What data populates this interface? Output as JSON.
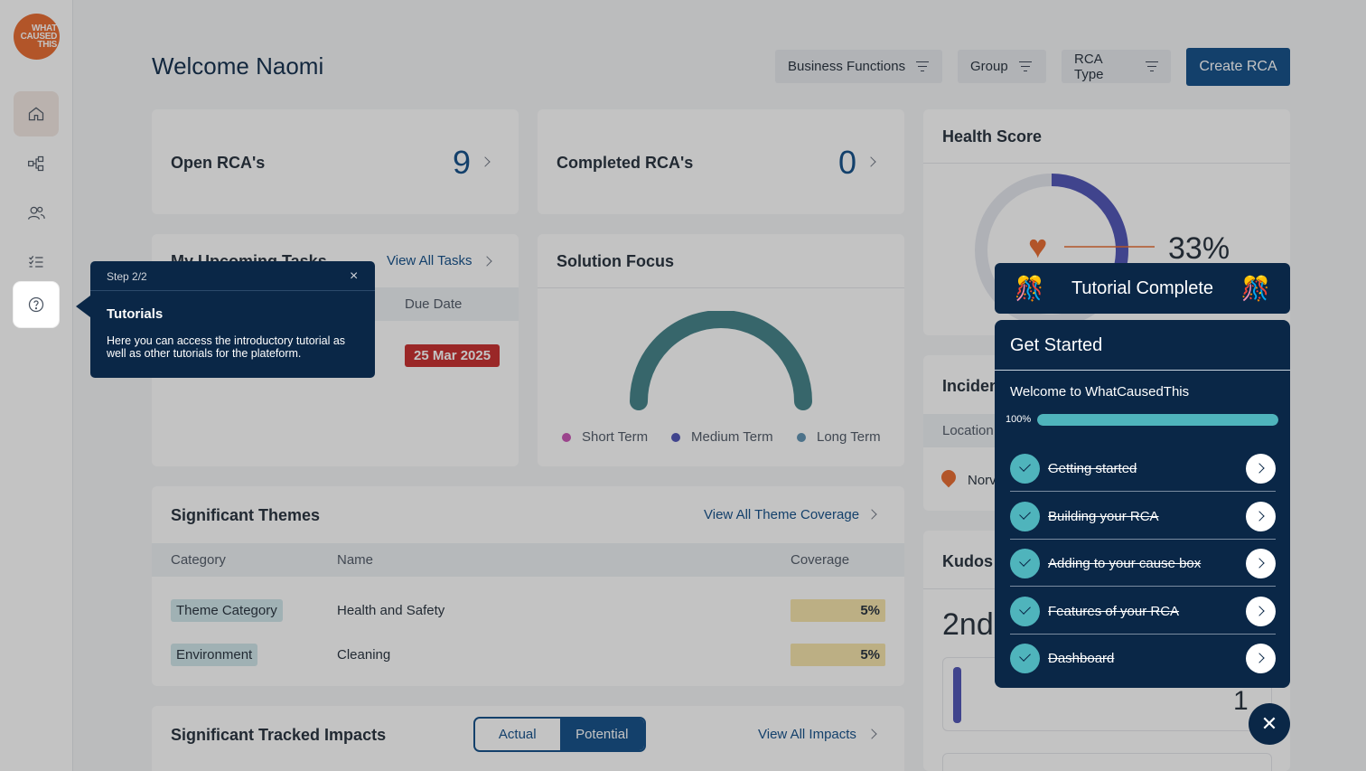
{
  "app": {
    "logo_text": "WHAT CAUSED THIS"
  },
  "header": {
    "title": "Welcome Naomi",
    "filters": [
      "Business Functions",
      "Group",
      "RCA Type"
    ],
    "create_label": "Create RCA"
  },
  "open_rcas": {
    "label": "Open RCA's",
    "count": "9"
  },
  "completed_rcas": {
    "label": "Completed RCA's",
    "count": "0"
  },
  "tasks": {
    "title": "My Upcoming Tasks",
    "link": "View All Tasks",
    "due_header": "Due Date",
    "due_date": "25 Mar 2025"
  },
  "solution_focus": {
    "title": "Solution Focus",
    "legend": [
      "Short Term",
      "Medium Term",
      "Long Term"
    ],
    "colors": [
      "#c84fb3",
      "#4a4fb5",
      "#5b8fb0"
    ]
  },
  "health": {
    "title": "Health Score",
    "percent": "33%",
    "value": 33
  },
  "incidents": {
    "title": "Inciden",
    "col": "Location",
    "row": "Norv"
  },
  "kudos": {
    "title": "Kudos",
    "rank": "2nd",
    "count": "1"
  },
  "themes": {
    "title": "Significant Themes",
    "link": "View All Theme Coverage",
    "headers": [
      "Category",
      "Name",
      "Coverage"
    ],
    "rows": [
      {
        "category": "Theme Category",
        "name": "Health and Safety",
        "coverage": "5%"
      },
      {
        "category": "Environment",
        "name": "Cleaning",
        "coverage": "5%"
      }
    ]
  },
  "impacts": {
    "title": "Significant Tracked Impacts",
    "toggle": [
      "Actual",
      "Potential"
    ],
    "link": "View All Impacts"
  },
  "tooltip": {
    "step": "Step 2/2",
    "close": "×",
    "title": "Tutorials",
    "body": "Here you can access the introductory tutorial as well as other tutorials for the plateform."
  },
  "tutorial": {
    "banner": "Tutorial Complete",
    "party": "🎊",
    "panel_title": "Get Started",
    "welcome": "Welcome to WhatCausedThis",
    "progress_label": "100%",
    "progress": 1.0,
    "items": [
      "Getting started",
      "Building your RCA",
      "Adding to your cause box",
      "Features of your RCA",
      "Dashboard"
    ],
    "close": "✕"
  },
  "colors": {
    "primary": "#0c4a86",
    "navy": "#0a2747",
    "teal": "#4fb4bc",
    "gauge": "#3e7f86",
    "danger": "#c62828",
    "heart": "#e8672a"
  }
}
